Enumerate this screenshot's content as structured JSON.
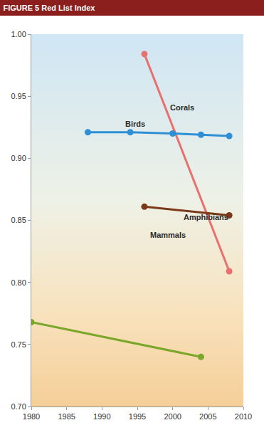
{
  "chart_data": {
    "type": "line",
    "title": "FIGURE 5 Red List Index",
    "xlim": [
      1980,
      2010
    ],
    "xticks": [
      1980,
      1985,
      1990,
      1995,
      2000,
      2005,
      2010
    ],
    "ylim": [
      0.7,
      1.0
    ],
    "yticks": [
      {
        "value": 0.7,
        "label": "0.70"
      },
      {
        "value": 0.75,
        "label": "0.75"
      },
      {
        "value": 0.8,
        "label": "0.80"
      },
      {
        "value": 0.85,
        "label": "0.85"
      },
      {
        "value": 0.9,
        "label": "0.90"
      },
      {
        "value": 0.95,
        "label": "0.95"
      },
      {
        "value": 1.0,
        "label": "1.00"
      }
    ],
    "grid": false,
    "marker": "circle",
    "series": [
      {
        "name": "Corals",
        "color": "#e8706f",
        "x": [
          1996,
          2008
        ],
        "values": [
          0.984,
          0.809
        ]
      },
      {
        "name": "Birds",
        "color": "#2f8fd4",
        "x": [
          1988,
          1994,
          2000,
          2004,
          2008
        ],
        "values": [
          0.921,
          0.921,
          0.92,
          0.919,
          0.918
        ]
      },
      {
        "name": "Mammals",
        "color": "#7a3a1a",
        "x": [
          1996,
          2008
        ],
        "values": [
          0.861,
          0.854
        ]
      },
      {
        "name": "Amphibians",
        "color": "#7aa62a",
        "x": [
          1980,
          2004
        ],
        "values": [
          0.768,
          0.74
        ]
      }
    ]
  }
}
